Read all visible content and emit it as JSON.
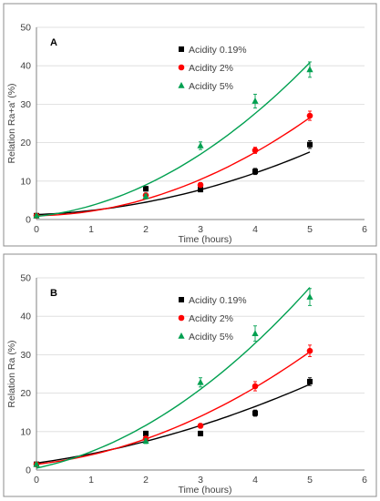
{
  "chart_data": [
    {
      "type": "scatter",
      "panel_label": "A",
      "xlabel": "Time (hours)",
      "ylabel": "Relation Ra+a' (%)",
      "xlim": [
        0,
        6
      ],
      "ylim": [
        0,
        50
      ],
      "x_ticks": [
        "0",
        "1",
        "2",
        "3",
        "4",
        "5",
        "6"
      ],
      "y_ticks": [
        "0",
        "10",
        "20",
        "30",
        "40",
        "50"
      ],
      "grid": "horizontal",
      "legend_position": "top-center",
      "series": [
        {
          "name": "Acidity 0.19%",
          "color": "#000000",
          "marker": "square",
          "x": [
            0,
            2,
            3,
            4,
            5
          ],
          "y": [
            1,
            8,
            7.8,
            12.5,
            19.5
          ],
          "error": [
            0.3,
            0.6,
            0.6,
            0.8,
            1.0
          ],
          "trend": [
            1.3,
            0.5,
            0.55
          ]
        },
        {
          "name": "Acidity 2%",
          "color": "#ff0000",
          "marker": "circle",
          "x": [
            0,
            2,
            3,
            4,
            5
          ],
          "y": [
            1,
            6.3,
            9,
            18,
            27
          ],
          "error": [
            0.3,
            0.6,
            0.6,
            0.8,
            1.2
          ],
          "trend": [
            1.0,
            0.2,
            0.98
          ]
        },
        {
          "name": "Acidity 5%",
          "color": "#00a050",
          "marker": "triangle",
          "x": [
            0,
            2,
            3,
            4,
            5
          ],
          "y": [
            1,
            6,
            19.2,
            30.8,
            39
          ],
          "error": [
            0.3,
            0.6,
            1.0,
            1.8,
            2.0
          ],
          "trend": [
            0.8,
            1.5,
            1.3
          ]
        }
      ]
    },
    {
      "type": "scatter",
      "panel_label": "B",
      "xlabel": "Time (hours)",
      "ylabel": "Relation Ra (%)",
      "xlim": [
        0,
        6
      ],
      "ylim": [
        0,
        50
      ],
      "x_ticks": [
        "0",
        "1",
        "2",
        "3",
        "4",
        "5",
        "6"
      ],
      "y_ticks": [
        "0",
        "10",
        "20",
        "30",
        "40",
        "50"
      ],
      "grid": "horizontal",
      "legend_position": "top-center",
      "series": [
        {
          "name": "Acidity 0.19%",
          "color": "#000000",
          "marker": "square",
          "x": [
            0,
            2,
            3,
            4,
            5
          ],
          "y": [
            1.5,
            9.5,
            9.5,
            14.8,
            23
          ],
          "error": [
            0.3,
            0.6,
            0.6,
            0.8,
            1.0
          ],
          "trend": [
            1.8,
            2.0,
            0.42
          ]
        },
        {
          "name": "Acidity 2%",
          "color": "#ff0000",
          "marker": "circle",
          "x": [
            0,
            2,
            3,
            4,
            5
          ],
          "y": [
            1.5,
            8.2,
            11.5,
            21.8,
            31
          ],
          "error": [
            0.3,
            0.6,
            0.6,
            1.2,
            1.5
          ],
          "trend": [
            1.5,
            1.6,
            0.85
          ]
        },
        {
          "name": "Acidity 5%",
          "color": "#00a050",
          "marker": "triangle",
          "x": [
            0,
            2,
            3,
            4,
            5
          ],
          "y": [
            1.5,
            7.5,
            22.8,
            35.5,
            45
          ],
          "error": [
            0.3,
            0.6,
            1.2,
            2.0,
            2.2
          ],
          "trend": [
            0.5,
            3.0,
            1.28
          ]
        }
      ]
    }
  ]
}
